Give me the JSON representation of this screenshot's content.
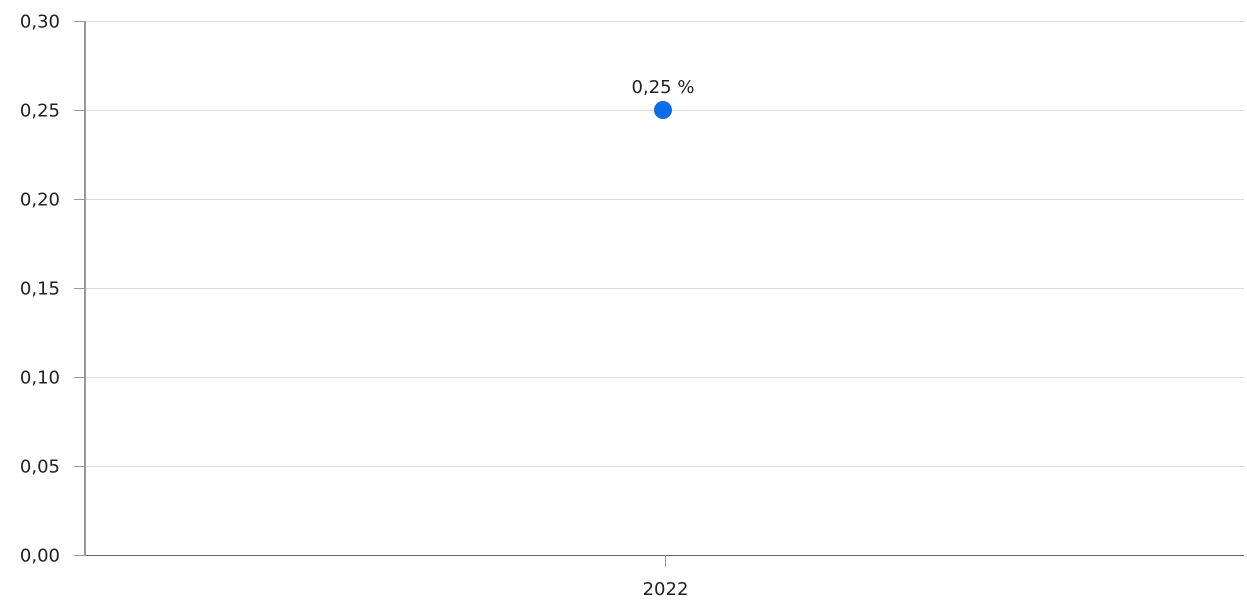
{
  "chart_data": {
    "type": "scatter",
    "title": "",
    "xlabel": "",
    "ylabel": "",
    "categories": [
      "2022"
    ],
    "series": [
      {
        "values": [
          0.25
        ],
        "data_labels": [
          "0,25 %"
        ]
      }
    ],
    "y_ticks": [
      "0,00",
      "0,05",
      "0,10",
      "0,15",
      "0,20",
      "0,25",
      "0,30"
    ],
    "ylim": [
      0,
      0.3
    ],
    "y_tick_step": 0.05,
    "grid": true,
    "legend": "none",
    "colors": {
      "point": "#0a6ee8",
      "grid": "#dcdcdc",
      "axis": "#999999",
      "text": "#222222"
    }
  }
}
